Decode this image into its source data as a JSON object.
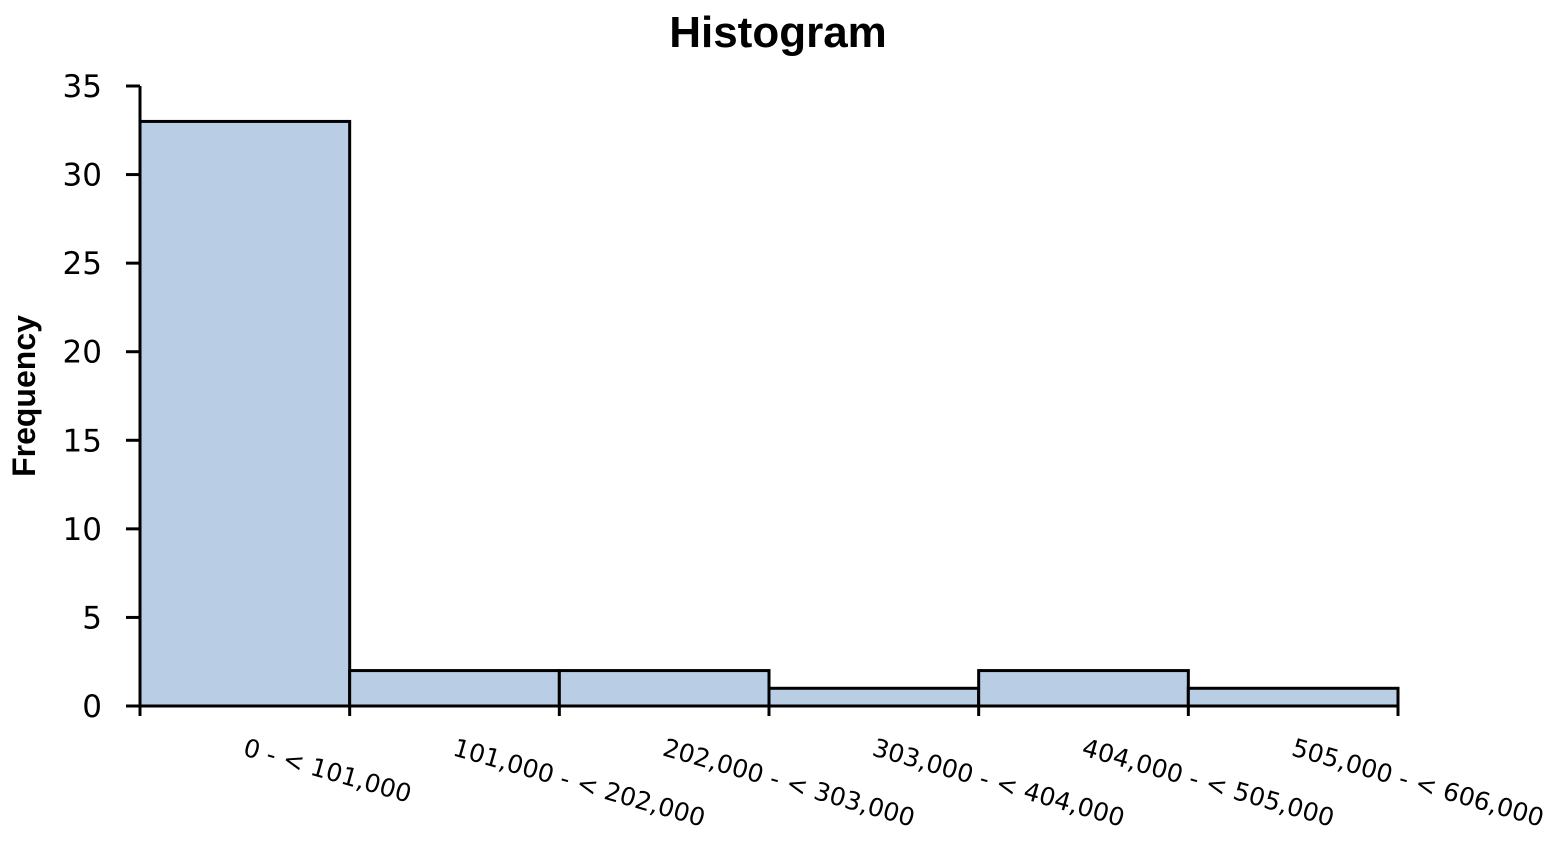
{
  "chart_data": {
    "type": "bar",
    "title": "Histogram",
    "xlabel": "",
    "ylabel": "Frequency",
    "categories": [
      "0 - < 101,000",
      "101,000 - < 202,000",
      "202,000 - < 303,000",
      "303,000 - < 404,000",
      "404,000 - < 505,000",
      "505,000 - < 606,000"
    ],
    "values": [
      33,
      2,
      2,
      1,
      2,
      1
    ],
    "ylim": [
      0,
      35
    ],
    "yticks": [
      0,
      5,
      10,
      15,
      20,
      25,
      30,
      35
    ],
    "grid": false,
    "legend": "none",
    "bar_color": "#b9cde5",
    "edge_color": "#000000"
  }
}
